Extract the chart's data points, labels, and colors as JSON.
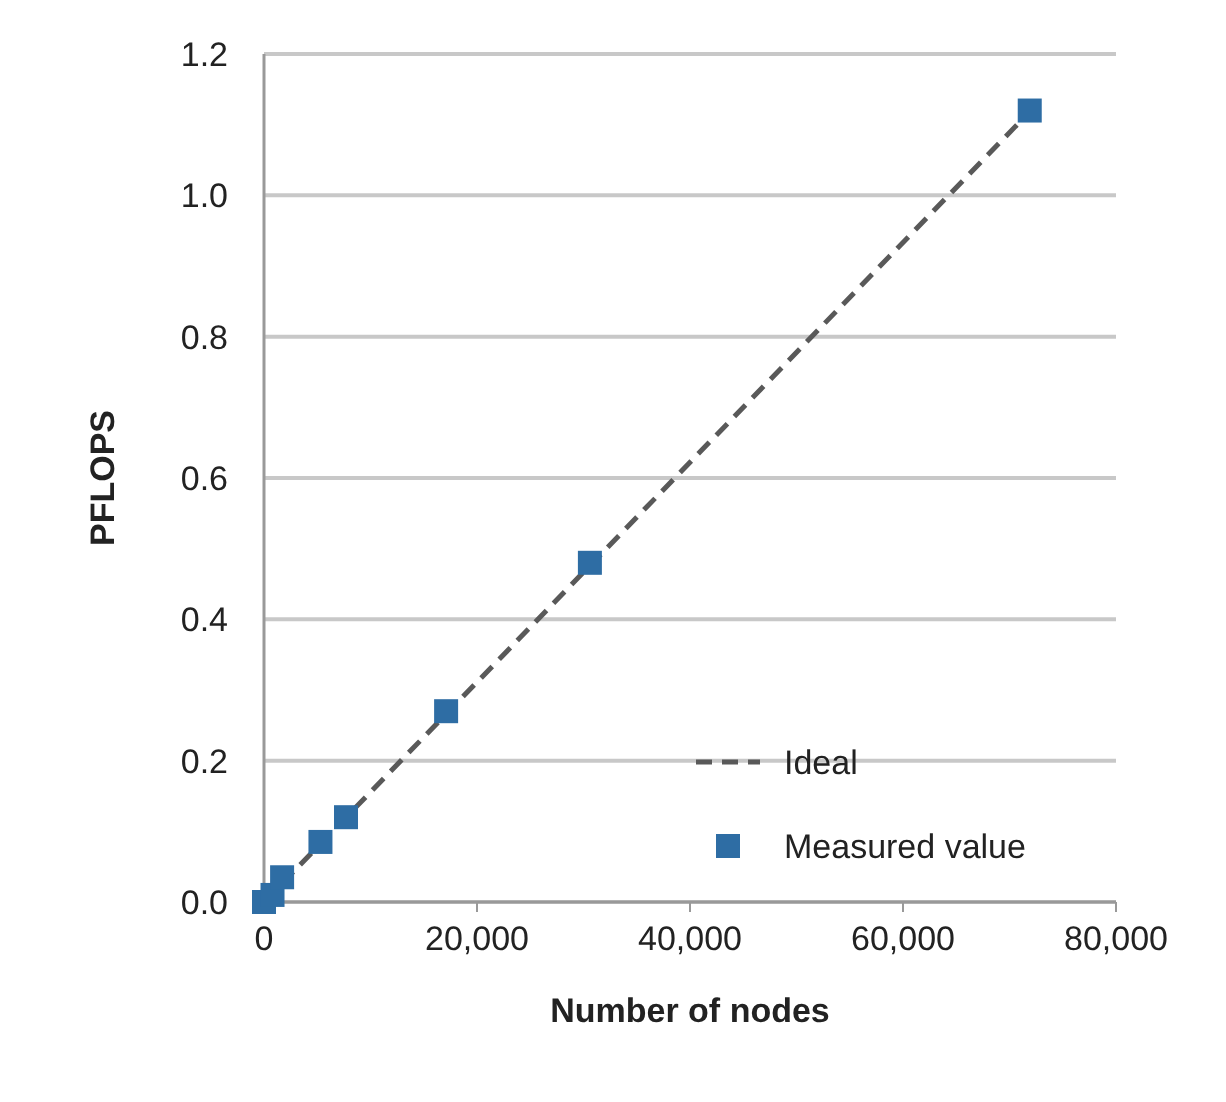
{
  "chart_data": {
    "type": "scatter",
    "xlabel": "Number of nodes",
    "ylabel": "PFLOPS",
    "xlim": [
      0,
      80000
    ],
    "xticks": [
      {
        "value": 0,
        "label": "0"
      },
      {
        "value": 20000,
        "label": "20,000"
      },
      {
        "value": 40000,
        "label": "40,000"
      },
      {
        "value": 60000,
        "label": "60,000"
      },
      {
        "value": 80000,
        "label": "80,000"
      }
    ],
    "ylim": [
      0,
      1.2
    ],
    "yticks": [
      {
        "value": 0,
        "label": "0.0"
      },
      {
        "value": 0.2,
        "label": "0.2"
      },
      {
        "value": 0.4,
        "label": "0.4"
      },
      {
        "value": 0.6,
        "label": "0.6"
      },
      {
        "value": 0.8,
        "label": "0.8"
      },
      {
        "value": 1,
        "label": "1.0"
      },
      {
        "value": 1.2,
        "label": "1.2"
      }
    ],
    "grid": "y",
    "legend": "bottom right",
    "series": [
      {
        "name": "Ideal",
        "type": "line",
        "line_style": "dashed",
        "marker": "none",
        "color": "#595959",
        "x": [
          0,
          72000
        ],
        "values": [
          0,
          1.12
        ]
      },
      {
        "name": "Measured value",
        "marker": "square",
        "color": "#2e6da4",
        "x": [
          0,
          800,
          1700,
          5300,
          7700,
          17100,
          30600,
          71900
        ],
        "values": [
          0,
          0.01,
          0.035,
          0.085,
          0.12,
          0.27,
          0.48,
          1.12
        ]
      }
    ]
  }
}
